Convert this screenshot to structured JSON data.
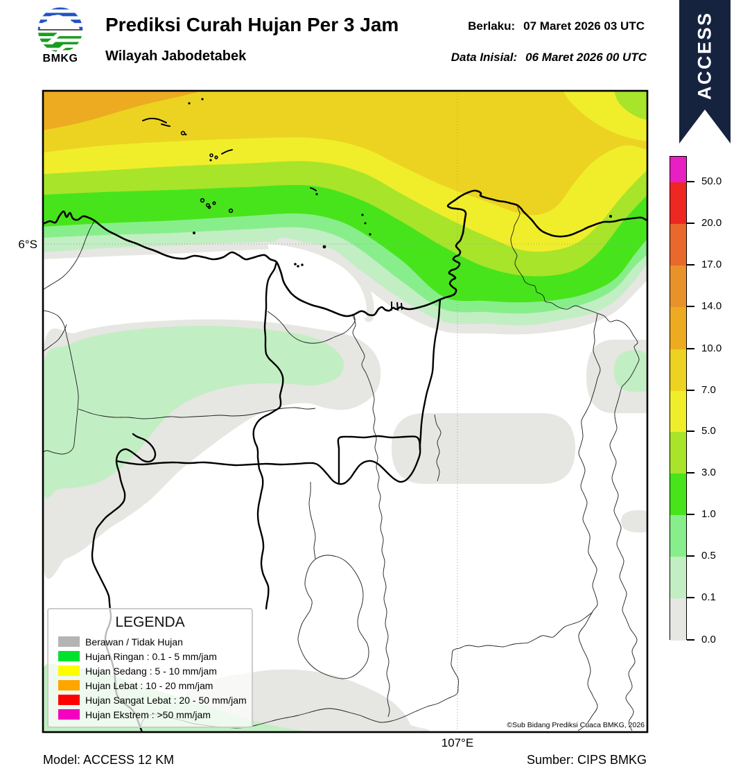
{
  "header": {
    "logo_text": "BMKG",
    "title": "Prediksi Curah Hujan Per 3 Jam",
    "subtitle": "Wilayah Jabodetabek",
    "valid_label": "Berlaku:",
    "valid_value": "07 Maret 2026 03 UTC",
    "init_label": "Data Inisial:",
    "init_value": "06 Maret 2026 00 UTC",
    "ribbon_text": "ACCESS"
  },
  "map": {
    "lat_label": "6°S",
    "lon_label": "107°E",
    "copyright": "©Sub Bidang Prediksi Cuaca BMKG, 2026"
  },
  "legend": {
    "title": "LEGENDA",
    "items": [
      {
        "label": "Berawan / Tidak Hujan",
        "color": "#b4b4b4"
      },
      {
        "label": "Hujan Ringan : 0.1 - 5 mm/jam",
        "color": "#00e32d"
      },
      {
        "label": "Hujan Sedang : 5 - 10 mm/jam",
        "color": "#fdfd00"
      },
      {
        "label": "Hujan Lebat : 10 - 20 mm/jam",
        "color": "#ffa500"
      },
      {
        "label": "Hujan Sangat Lebat : 20 - 50 mm/jam",
        "color": "#fe0000"
      },
      {
        "label": "Hujan Ekstrem : >50 mm/jam",
        "color": "#f400c0"
      }
    ]
  },
  "colorbar": {
    "unit_values_top_to_bottom": [
      "50.0",
      "20.0",
      "17.0",
      "14.0",
      "10.0",
      "7.0",
      "5.0",
      "3.0",
      "1.0",
      "0.5",
      "0.1",
      "0.0"
    ],
    "segment_colors_top_to_bottom": [
      "#e81fc2",
      "#ee2723",
      "#e9682c",
      "#e9922c",
      "#ecab21",
      "#ecd321",
      "#f0ee2b",
      "#a8e42a",
      "#47e41c",
      "#88ee8b",
      "#c2eec3",
      "#e6e6e2"
    ]
  },
  "footer": {
    "model": "Model: ACCESS 12 KM",
    "source": "Sumber: CIPS BMKG"
  },
  "chart_data": {
    "type": "heatmap",
    "title": "Prediksi Curah Hujan Per 3 Jam",
    "subtitle": "Wilayah Jabodetabek",
    "valid_time": "07 Maret 2026 03 UTC",
    "initial_time": "06 Maret 2026 00 UTC",
    "model": "ACCESS 12 KM",
    "source": "CIPS BMKG",
    "colorbar_levels_mm_per_jam": [
      0.0,
      0.1,
      0.5,
      1.0,
      3.0,
      5.0,
      7.0,
      10.0,
      14.0,
      17.0,
      20.0,
      50.0
    ],
    "colorbar_colors_low_to_high": [
      "#e6e6e2",
      "#c2eec3",
      "#88ee8b",
      "#47e41c",
      "#a8e42a",
      "#f0ee2b",
      "#ecd321",
      "#ecab21",
      "#e9922c",
      "#e9682c",
      "#ee2723",
      "#e81fc2"
    ],
    "gridlines": {
      "latitude": "6°S",
      "longitude": "107°E"
    },
    "classes": [
      {
        "name": "Berawan / Tidak Hujan",
        "range_mm_per_jam": "0"
      },
      {
        "name": "Hujan Ringan",
        "range_mm_per_jam": "0.1 - 5"
      },
      {
        "name": "Hujan Sedang",
        "range_mm_per_jam": "5 - 10"
      },
      {
        "name": "Hujan Lebat",
        "range_mm_per_jam": "10 - 20"
      },
      {
        "name": "Hujan Sangat Lebat",
        "range_mm_per_jam": "20 - 50"
      },
      {
        "name": "Hujan Ekstrem",
        "range_mm_per_jam": ">50"
      }
    ],
    "pattern_summary": "Rain bands over the Java Sea north of Jabodetabek: 10-14 mm band at far NW corner, 7-10 and 5-7 yellow bands across the top, green 0.1-5 bands near the coast dipping south around Tanjung Karawang; mostly dry inland with scattered cloudy gray patches and light 0.1-0.5 drizzle areas."
  }
}
